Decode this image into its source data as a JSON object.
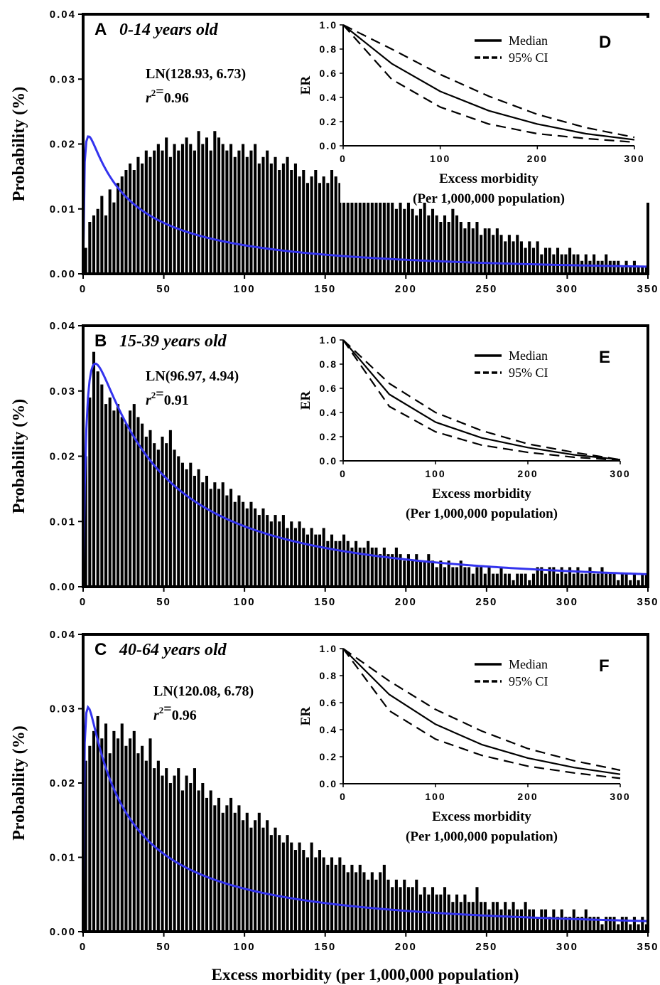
{
  "figure": {
    "x_axis_label": "Excess morbidity (per 1,000,000 population)"
  },
  "chart_data": [
    {
      "panel": "A",
      "type": "bar",
      "age_group": "0-14 years old",
      "fit_label": "LN(128.93, 6.73)",
      "r2_label": "r2=0.96",
      "r2_value": "0.96",
      "ylabel": "Probability (%)",
      "xlim": [
        0,
        350
      ],
      "ylim": [
        0,
        0.04
      ],
      "x_ticks": [
        "0",
        "50",
        "100",
        "150",
        "200",
        "250",
        "300",
        "350"
      ],
      "y_ticks": [
        "0.00",
        "0.01",
        "0.02",
        "0.03",
        "0.04"
      ],
      "bin_width": 2.5,
      "fit_curve": {
        "type": "lognormal",
        "gm": 128.93,
        "gsd": 6.73,
        "color": "#3333ee"
      },
      "bars": [
        0.004,
        0.008,
        0.009,
        0.01,
        0.012,
        0.009,
        0.013,
        0.011,
        0.014,
        0.015,
        0.016,
        0.017,
        0.016,
        0.018,
        0.017,
        0.019,
        0.018,
        0.019,
        0.02,
        0.019,
        0.021,
        0.018,
        0.02,
        0.019,
        0.02,
        0.021,
        0.02,
        0.019,
        0.022,
        0.02,
        0.021,
        0.019,
        0.022,
        0.021,
        0.02,
        0.019,
        0.02,
        0.018,
        0.019,
        0.02,
        0.018,
        0.019,
        0.02,
        0.017,
        0.018,
        0.019,
        0.017,
        0.018,
        0.016,
        0.017,
        0.018,
        0.016,
        0.017,
        0.015,
        0.016,
        0.014,
        0.015,
        0.016,
        0.014,
        0.015,
        0.014,
        0.016,
        0.015,
        0.014,
        0.013,
        0.015,
        0.014,
        0.013,
        0.014,
        0.013,
        0.012,
        0.013,
        0.012,
        0.011,
        0.012,
        0.011,
        0.012,
        0.01,
        0.011,
        0.01,
        0.011,
        0.01,
        0.009,
        0.01,
        0.011,
        0.009,
        0.01,
        0.009,
        0.008,
        0.009,
        0.008,
        0.01,
        0.009,
        0.008,
        0.007,
        0.008,
        0.007,
        0.008,
        0.006,
        0.007,
        0.007,
        0.006,
        0.007,
        0.006,
        0.005,
        0.006,
        0.005,
        0.006,
        0.005,
        0.004,
        0.005,
        0.004,
        0.005,
        0.003,
        0.004,
        0.004,
        0.003,
        0.004,
        0.003,
        0.003,
        0.004,
        0.003,
        0.003,
        0.002,
        0.003,
        0.002,
        0.003,
        0.002,
        0.002,
        0.003,
        0.002,
        0.002,
        0.002,
        0.001,
        0.002,
        0.001,
        0.002,
        0.001,
        0.001,
        0.001
      ],
      "inset": {
        "panel": "D",
        "type": "line",
        "ylabel": "ER",
        "xlabel_line1": "Excess morbidity",
        "xlabel_line2": "(Per 1,000,000 population)",
        "xlim": [
          0,
          300
        ],
        "ylim": [
          0,
          1.0
        ],
        "x_ticks": [
          "0",
          "100",
          "200",
          "300"
        ],
        "y_ticks": [
          "0.0",
          "0.2",
          "0.4",
          "0.6",
          "0.8",
          "1.0"
        ],
        "legend_median": "Median",
        "legend_ci": "95% CI",
        "series": [
          {
            "name": "Median",
            "x": [
              0,
              50,
              100,
              150,
              200,
              250,
              300
            ],
            "y": [
              1.0,
              0.68,
              0.45,
              0.29,
              0.18,
              0.1,
              0.05
            ]
          },
          {
            "name": "95% CI",
            "x": [
              0,
              50,
              100,
              150,
              200,
              250,
              300
            ],
            "y": [
              1.0,
              0.8,
              0.59,
              0.41,
              0.26,
              0.15,
              0.07
            ]
          },
          {
            "name": "95% CI",
            "x": [
              0,
              50,
              100,
              150,
              200,
              250,
              300
            ],
            "y": [
              1.0,
              0.55,
              0.32,
              0.18,
              0.1,
              0.06,
              0.03
            ]
          }
        ]
      }
    },
    {
      "panel": "B",
      "type": "bar",
      "age_group": "15-39 years old",
      "fit_label": "LN(96.97, 4.94)",
      "r2_label": "r2=0.91",
      "r2_value": "0.91",
      "ylabel": "Probability (%)",
      "xlim": [
        0,
        350
      ],
      "ylim": [
        0,
        0.04
      ],
      "x_ticks": [
        "0",
        "50",
        "100",
        "150",
        "200",
        "250",
        "300",
        "350"
      ],
      "y_ticks": [
        "0.00",
        "0.01",
        "0.02",
        "0.03",
        "0.04"
      ],
      "bin_width": 2.5,
      "fit_curve": {
        "type": "lognormal",
        "gm": 96.97,
        "gsd": 4.94,
        "color": "#3333ee"
      },
      "bars": [
        0.02,
        0.029,
        0.036,
        0.033,
        0.031,
        0.028,
        0.029,
        0.027,
        0.028,
        0.026,
        0.025,
        0.027,
        0.028,
        0.026,
        0.025,
        0.023,
        0.024,
        0.022,
        0.021,
        0.023,
        0.022,
        0.024,
        0.021,
        0.02,
        0.019,
        0.018,
        0.019,
        0.017,
        0.018,
        0.016,
        0.017,
        0.015,
        0.016,
        0.015,
        0.016,
        0.014,
        0.015,
        0.013,
        0.014,
        0.013,
        0.012,
        0.013,
        0.012,
        0.011,
        0.012,
        0.011,
        0.01,
        0.011,
        0.01,
        0.011,
        0.009,
        0.01,
        0.009,
        0.01,
        0.009,
        0.008,
        0.009,
        0.008,
        0.008,
        0.009,
        0.007,
        0.008,
        0.007,
        0.007,
        0.008,
        0.007,
        0.006,
        0.007,
        0.006,
        0.006,
        0.007,
        0.006,
        0.006,
        0.005,
        0.006,
        0.005,
        0.005,
        0.006,
        0.005,
        0.004,
        0.005,
        0.004,
        0.005,
        0.004,
        0.004,
        0.005,
        0.004,
        0.003,
        0.004,
        0.003,
        0.004,
        0.003,
        0.003,
        0.004,
        0.003,
        0.003,
        0.002,
        0.003,
        0.003,
        0.002,
        0.003,
        0.002,
        0.002,
        0.003,
        0.002,
        0.002,
        0.001,
        0.002,
        0.002,
        0.002,
        0.001,
        0.002,
        0.003,
        0.003,
        0.002,
        0.003,
        0.003,
        0.002,
        0.003,
        0.002,
        0.003,
        0.002,
        0.003,
        0.002,
        0.002,
        0.003,
        0.002,
        0.002,
        0.003,
        0.002,
        0.002,
        0.002,
        0.001,
        0.002,
        0.002,
        0.001,
        0.002,
        0.001,
        0.002,
        0.002
      ],
      "inset": {
        "panel": "E",
        "type": "line",
        "ylabel": "ER",
        "xlabel_line1": "Excess morbidity",
        "xlabel_line2": "(Per 1,000,000 population)",
        "xlim": [
          0,
          300
        ],
        "ylim": [
          0,
          1.0
        ],
        "x_ticks": [
          "0",
          "100",
          "200",
          "300"
        ],
        "y_ticks": [
          "0.0",
          "0.2",
          "0.4",
          "0.6",
          "0.8",
          "1.0"
        ],
        "legend_median": "Median",
        "legend_ci": "95% CI",
        "series": [
          {
            "name": "Median",
            "x": [
              0,
              50,
              100,
              150,
              200,
              250,
              300
            ],
            "y": [
              1.0,
              0.55,
              0.32,
              0.19,
              0.11,
              0.05,
              0.01
            ]
          },
          {
            "name": "95% CI",
            "x": [
              0,
              50,
              100,
              150,
              200,
              250,
              300
            ],
            "y": [
              1.0,
              0.64,
              0.4,
              0.25,
              0.14,
              0.07,
              0.01
            ]
          },
          {
            "name": "95% CI",
            "x": [
              0,
              50,
              100,
              150,
              200,
              250,
              300
            ],
            "y": [
              1.0,
              0.45,
              0.24,
              0.13,
              0.07,
              0.03,
              0.005
            ]
          }
        ]
      }
    },
    {
      "panel": "C",
      "type": "bar",
      "age_group": "40-64 years old",
      "fit_label": "LN(120.08, 6.78)",
      "r2_label": "r2=0.96",
      "r2_value": "0.96",
      "ylabel": "Probability (%)",
      "xlim": [
        0,
        350
      ],
      "ylim": [
        0,
        0.04
      ],
      "x_ticks": [
        "0",
        "50",
        "100",
        "150",
        "200",
        "250",
        "300",
        "350"
      ],
      "y_ticks": [
        "0.00",
        "0.01",
        "0.02",
        "0.03",
        "0.04"
      ],
      "bin_width": 2.5,
      "fit_curve": {
        "type": "lognormal",
        "gm": 120.08,
        "gsd": 6.78,
        "color": "#3333ee"
      },
      "bars": [
        0.023,
        0.025,
        0.027,
        0.029,
        0.026,
        0.028,
        0.024,
        0.027,
        0.026,
        0.028,
        0.025,
        0.026,
        0.027,
        0.024,
        0.025,
        0.023,
        0.026,
        0.022,
        0.023,
        0.021,
        0.022,
        0.02,
        0.021,
        0.022,
        0.019,
        0.021,
        0.02,
        0.022,
        0.019,
        0.02,
        0.018,
        0.019,
        0.017,
        0.018,
        0.016,
        0.017,
        0.018,
        0.016,
        0.017,
        0.015,
        0.016,
        0.014,
        0.015,
        0.016,
        0.014,
        0.015,
        0.013,
        0.014,
        0.013,
        0.012,
        0.013,
        0.012,
        0.011,
        0.012,
        0.011,
        0.01,
        0.012,
        0.01,
        0.011,
        0.01,
        0.009,
        0.01,
        0.009,
        0.01,
        0.009,
        0.008,
        0.009,
        0.008,
        0.009,
        0.008,
        0.007,
        0.008,
        0.007,
        0.008,
        0.009,
        0.007,
        0.006,
        0.007,
        0.006,
        0.007,
        0.006,
        0.006,
        0.007,
        0.005,
        0.006,
        0.005,
        0.006,
        0.005,
        0.005,
        0.006,
        0.005,
        0.004,
        0.005,
        0.004,
        0.005,
        0.004,
        0.004,
        0.006,
        0.004,
        0.004,
        0.003,
        0.004,
        0.004,
        0.003,
        0.004,
        0.003,
        0.004,
        0.003,
        0.003,
        0.004,
        0.003,
        0.003,
        0.002,
        0.003,
        0.003,
        0.002,
        0.003,
        0.002,
        0.003,
        0.002,
        0.002,
        0.003,
        0.002,
        0.002,
        0.003,
        0.002,
        0.002,
        0.002,
        0.001,
        0.002,
        0.002,
        0.002,
        0.001,
        0.002,
        0.002,
        0.001,
        0.002,
        0.001,
        0.002,
        0.001
      ],
      "inset": {
        "panel": "F",
        "type": "line",
        "ylabel": "ER",
        "xlabel_line1": "Excess morbidity",
        "xlabel_line2": "(Per 1,000,000 population)",
        "xlim": [
          0,
          300
        ],
        "ylim": [
          0,
          1.0
        ],
        "x_ticks": [
          "0",
          "100",
          "200",
          "300"
        ],
        "y_ticks": [
          "0.0",
          "0.2",
          "0.4",
          "0.6",
          "0.8",
          "1.0"
        ],
        "legend_median": "Median",
        "legend_ci": "95% CI",
        "series": [
          {
            "name": "Median",
            "x": [
              0,
              50,
              100,
              150,
              200,
              250,
              300
            ],
            "y": [
              1.0,
              0.66,
              0.44,
              0.29,
              0.19,
              0.12,
              0.07
            ]
          },
          {
            "name": "95% CI",
            "x": [
              0,
              50,
              100,
              150,
              200,
              250,
              300
            ],
            "y": [
              1.0,
              0.76,
              0.55,
              0.39,
              0.26,
              0.17,
              0.1
            ]
          },
          {
            "name": "95% CI",
            "x": [
              0,
              50,
              100,
              150,
              200,
              250,
              300
            ],
            "y": [
              1.0,
              0.54,
              0.33,
              0.21,
              0.13,
              0.08,
              0.04
            ]
          }
        ]
      }
    }
  ]
}
